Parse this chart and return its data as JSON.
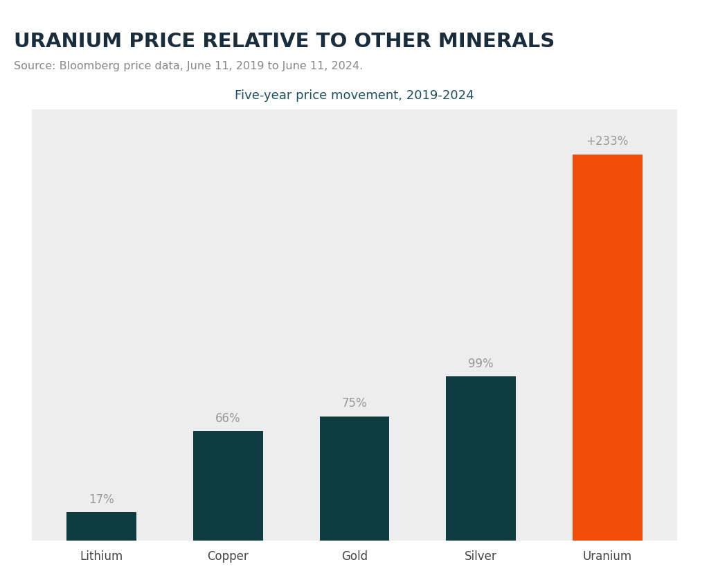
{
  "title": "URANIUM PRICE RELATIVE TO OTHER MINERALS",
  "subtitle": "Source: Bloomberg price data, June 11, 2019 to June 11, 2024.",
  "chart_title": "Five-year price movement, 2019-2024",
  "categories": [
    "Lithium",
    "Copper",
    "Gold",
    "Silver",
    "Uranium"
  ],
  "values": [
    17,
    66,
    75,
    99,
    233
  ],
  "labels": [
    "17%",
    "66%",
    "75%",
    "99%",
    "+233%"
  ],
  "bar_colors": [
    "#0d3d40",
    "#0d3d40",
    "#0d3d40",
    "#0d3d40",
    "#f04e0a"
  ],
  "bg_color": "#ededee",
  "outer_bg": "#ffffff",
  "title_color": "#1a2d3d",
  "subtitle_color": "#888888",
  "chart_title_color": "#1a5060",
  "label_color": "#999999",
  "accent_color": "#f04e0a",
  "ylim": [
    0,
    260
  ],
  "bar_width": 0.55
}
